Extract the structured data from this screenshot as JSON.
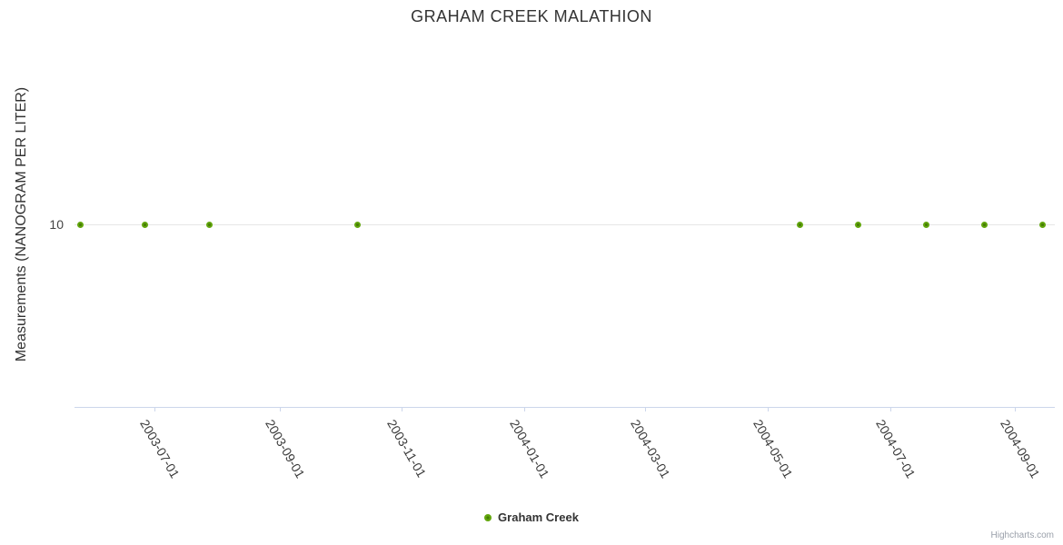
{
  "chart_data": {
    "type": "scatter",
    "title": "GRAHAM CREEK MALATHION",
    "xlabel": "",
    "ylabel": "Measurements (NANOGRAM PER LITER)",
    "x_axis_type": "datetime",
    "x_range": {
      "min": "2003-05-22",
      "max": "2004-09-21"
    },
    "x_ticks": [
      "2003-07-01",
      "2003-09-01",
      "2003-11-01",
      "2004-01-01",
      "2004-03-01",
      "2004-05-01",
      "2004-07-01",
      "2004-09-01"
    ],
    "ylim": [
      0,
      20
    ],
    "y_ticks": [
      10
    ],
    "grid": "horizontal-gridline-at-y-ticks-only",
    "legend_position": "bottom-center",
    "series": [
      {
        "name": "Graham Creek",
        "color": "#62a60d",
        "marker_center_color": "#477d05",
        "points": [
          {
            "x": "2003-05-25",
            "y": 10
          },
          {
            "x": "2003-06-26",
            "y": 10
          },
          {
            "x": "2003-07-28",
            "y": 10
          },
          {
            "x": "2003-10-10",
            "y": 10
          },
          {
            "x": "2004-05-17",
            "y": 10
          },
          {
            "x": "2004-06-15",
            "y": 10
          },
          {
            "x": "2004-07-19",
            "y": 10
          },
          {
            "x": "2004-08-17",
            "y": 10
          },
          {
            "x": "2004-09-15",
            "y": 10
          }
        ]
      }
    ],
    "colors": {
      "axis_line": "#ccd6eb",
      "grid_line": "#e6e6e6",
      "title_text": "#333333",
      "axis_label_text": "#3a3a3a",
      "credits_text": "#999fa9"
    },
    "credits": "Highcharts.com"
  }
}
